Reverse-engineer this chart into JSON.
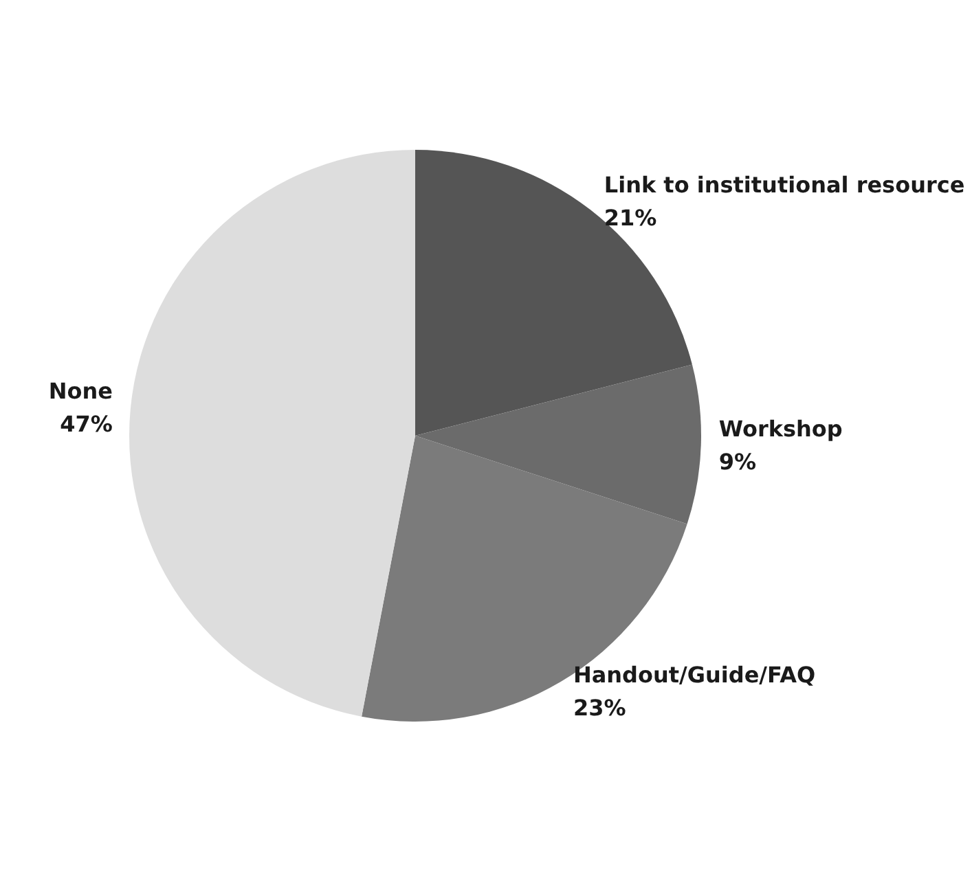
{
  "chart_data": {
    "type": "pie",
    "categories": [
      "Link to institutional resource",
      "Workshop",
      "Handout/Guide/FAQ",
      "None"
    ],
    "values": [
      21,
      9,
      23,
      47
    ],
    "colors": [
      "#555555",
      "#6b6b6b",
      "#7b7b7b",
      "#dddddd"
    ],
    "value_labels": [
      "21%",
      "9%",
      "23%",
      "47%"
    ],
    "legend": false
  }
}
